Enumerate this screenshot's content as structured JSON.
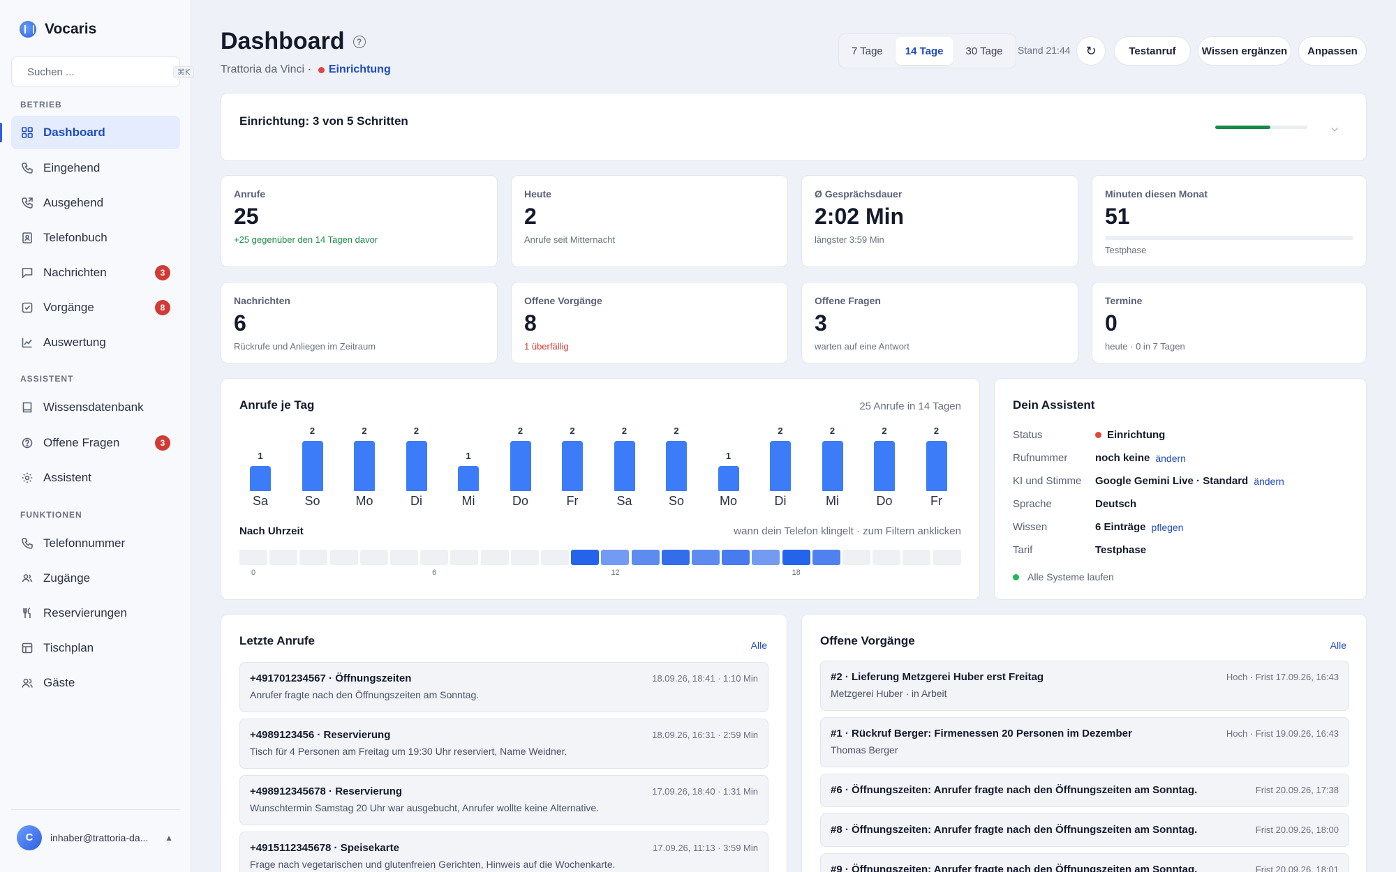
{
  "brand": {
    "name": "Vocaris"
  },
  "search": {
    "placeholder": "Suchen ...",
    "shortcut": "⌘K"
  },
  "sidebar": {
    "sections": [
      {
        "label": "BETRIEB",
        "items": [
          {
            "label": "Dashboard",
            "icon": "grid-icon",
            "active": true
          },
          {
            "label": "Eingehend",
            "icon": "phone-icon"
          },
          {
            "label": "Ausgehend",
            "icon": "phone-outgoing-icon"
          },
          {
            "label": "Telefonbuch",
            "icon": "contacts-icon"
          },
          {
            "label": "Nachrichten",
            "icon": "message-icon",
            "badge": "3"
          },
          {
            "label": "Vorgänge",
            "icon": "checkbox-icon",
            "badge": "8"
          },
          {
            "label": "Auswertung",
            "icon": "chart-icon"
          }
        ]
      },
      {
        "label": "ASSISTENT",
        "items": [
          {
            "label": "Wissensdatenbank",
            "icon": "book-icon"
          },
          {
            "label": "Offene Fragen",
            "icon": "question-icon",
            "badge": "3"
          },
          {
            "label": "Assistent",
            "icon": "gear-icon"
          }
        ]
      },
      {
        "label": "FUNKTIONEN",
        "items": [
          {
            "label": "Telefonnummer",
            "icon": "phone-icon"
          },
          {
            "label": "Zugänge",
            "icon": "users-icon"
          },
          {
            "label": "Reservierungen",
            "icon": "cutlery-icon"
          },
          {
            "label": "Tischplan",
            "icon": "table-icon"
          },
          {
            "label": "Gäste",
            "icon": "guests-icon"
          }
        ]
      }
    ]
  },
  "user": {
    "initial": "C",
    "email": "inhaber@trattoria-da..."
  },
  "header": {
    "title": "Dashboard",
    "restaurant": "Trattoria da Vinci ·",
    "status_link": "Einrichtung",
    "ranges": [
      "7 Tage",
      "14 Tage",
      "30 Tage"
    ],
    "active_range": "14 Tage",
    "stand": "Stand 21:44",
    "buttons": {
      "test_call": "Testanruf",
      "add_knowledge": "Wissen ergänzen",
      "customize": "Anpassen"
    }
  },
  "setup": {
    "title": "Einrichtung: 3 von 5 Schritten",
    "progress_fraction": 0.6
  },
  "kpis": [
    {
      "label": "Anrufe",
      "value": "25",
      "sub": "+25 gegenüber den 14 Tagen davor",
      "tone": "green"
    },
    {
      "label": "Heute",
      "value": "2",
      "sub": "Anrufe seit Mitternacht"
    },
    {
      "label": "Ø Gesprächsdauer",
      "value": "2:02 Min",
      "sub": "längster 3:59 Min"
    },
    {
      "label": "Minuten diesen Monat",
      "value": "51",
      "sub": "Testphase",
      "progress_fraction": 0.0
    },
    {
      "label": "Nachrichten",
      "value": "6",
      "sub": "Rückrufe und Anliegen im Zeitraum"
    },
    {
      "label": "Offene Vorgänge",
      "value": "8",
      "sub": "1 überfällig",
      "tone": "red"
    },
    {
      "label": "Offene Fragen",
      "value": "3",
      "sub": "warten auf eine Antwort"
    },
    {
      "label": "Termine",
      "value": "0",
      "sub": "heute · 0 in 7 Tagen"
    }
  ],
  "calls_chart": {
    "title": "Anrufe je Tag",
    "summary": "25 Anrufe in 14 Tagen",
    "bar_color": "#3d7cf8",
    "hour_title": "Nach Uhrzeit",
    "hour_hint": "wann dein Telefon klingelt · zum Filtern anklicken",
    "hour_ticks": [
      "0",
      "6",
      "12",
      "18"
    ]
  },
  "chart_data": {
    "type": "bar",
    "categories": [
      "Sa",
      "So",
      "Mo",
      "Di",
      "Mi",
      "Do",
      "Fr",
      "Sa",
      "So",
      "Mo",
      "Di",
      "Mi",
      "Do",
      "Fr"
    ],
    "values": [
      1,
      2,
      2,
      2,
      1,
      2,
      2,
      2,
      2,
      1,
      2,
      2,
      2,
      2
    ],
    "title": "Anrufe je Tag",
    "ylim": [
      0,
      2
    ],
    "hourly": {
      "hours": [
        0,
        1,
        2,
        3,
        4,
        5,
        6,
        7,
        8,
        9,
        10,
        11,
        12,
        13,
        14,
        15,
        16,
        17,
        18,
        19,
        20,
        21,
        22,
        23
      ],
      "intensity": [
        0,
        0,
        0,
        0,
        0,
        0,
        0,
        0,
        0,
        0,
        0,
        1.0,
        0.45,
        0.6,
        0.9,
        0.6,
        0.75,
        0.45,
        1.0,
        0.7,
        0,
        0,
        0,
        0
      ]
    }
  },
  "assistant": {
    "title": "Dein Assistent",
    "rows": [
      {
        "key": "Status",
        "value": "Einrichtung",
        "dot": "red"
      },
      {
        "key": "Rufnummer",
        "value": "noch keine",
        "link": "ändern"
      },
      {
        "key": "KI und Stimme",
        "value": "Google Gemini Live · Standard",
        "link": "ändern"
      },
      {
        "key": "Sprache",
        "value": "Deutsch"
      },
      {
        "key": "Wissen",
        "value": "6 Einträge",
        "link": "pflegen"
      },
      {
        "key": "Tarif",
        "value": "Testphase"
      }
    ],
    "systems": "Alle Systeme laufen"
  },
  "recent_calls": {
    "title": "Letzte Anrufe",
    "link": "Alle",
    "items": [
      {
        "title": "+491701234567 · Öffnungszeiten",
        "meta": "18.09.26, 18:41 · 1:10 Min",
        "desc": "Anrufer fragte nach den Öffnungszeiten am Sonntag."
      },
      {
        "title": "+4989123456 · Reservierung",
        "meta": "18.09.26, 16:31 · 2:59 Min",
        "desc": "Tisch für 4 Personen am Freitag um 19:30 Uhr reserviert, Name Weidner."
      },
      {
        "title": "+498912345678 · Reservierung",
        "meta": "17.09.26, 18:40 · 1:31 Min",
        "desc": "Wunschtermin Samstag 20 Uhr war ausgebucht, Anrufer wollte keine Alternative."
      },
      {
        "title": "+4915112345678 · Speisekarte",
        "meta": "17.09.26, 11:13 · 3:59 Min",
        "desc": "Frage nach vegetarischen und glutenfreien Gerichten, Hinweis auf die Wochenkarte."
      }
    ]
  },
  "open_tasks": {
    "title": "Offene Vorgänge",
    "link": "Alle",
    "items": [
      {
        "title": "#2 · Lieferung Metzgerei Huber erst Freitag",
        "meta": "Hoch · Frist 17.09.26, 16:43",
        "desc": "Metzgerei Huber · in Arbeit"
      },
      {
        "title": "#1 · Rückruf Berger: Firmenessen 20 Personen im Dezember",
        "meta": "Hoch · Frist 19.09.26, 16:43",
        "desc": "Thomas Berger"
      },
      {
        "title": "#6 · Öffnungszeiten: Anrufer fragte nach den Öffnungszeiten am Sonntag.",
        "meta": "Frist 20.09.26, 17:38",
        "desc": ""
      },
      {
        "title": "#8 · Öffnungszeiten: Anrufer fragte nach den Öffnungszeiten am Sonntag.",
        "meta": "Frist 20.09.26, 18:00",
        "desc": ""
      },
      {
        "title": "#9 · Öffnungszeiten: Anrufer fragte nach den Öffnungszeiten am Sonntag.",
        "meta": "Frist 20.09.26, 18:01",
        "desc": ""
      }
    ]
  }
}
